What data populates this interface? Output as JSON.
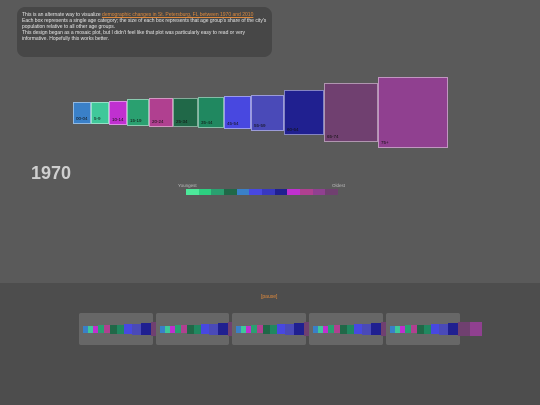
{
  "info": {
    "intro": "This is an alternate way to visualize",
    "link": "demographic changes in St. Petersburg, FL between 1970 and 2010",
    "line2": "Each box represents a single age category; the size of each box represents that age group's share of the city's population relative to all other age groups.",
    "line3": "This design began as a mosaic plot, but I didn't feel like that plot was particularly easy to read or very informative. Hopefully this works better."
  },
  "boxes": [
    "00-04",
    "5-9",
    "10-14",
    "15-19",
    "20-24",
    "25-34",
    "35-44",
    "45-54",
    "55-59",
    "60-64",
    "65-74",
    "75+"
  ],
  "year": "1970",
  "legend": {
    "start": "Youngest",
    "end": "Oldest"
  },
  "controls": {
    "button": "[pause]"
  }
}
